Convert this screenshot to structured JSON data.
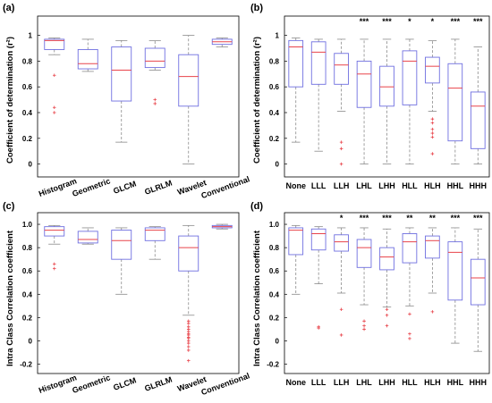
{
  "chart_data": [
    {
      "type": "box",
      "panel": "(a)",
      "ylabel": "Coefficient of determination (r²)",
      "ylim": [
        -0.1,
        1.15
      ],
      "yticks": [
        "0",
        "0.2",
        "0.4",
        "0.6",
        "0.8",
        "1"
      ],
      "ytick_values": [
        0,
        0.2,
        0.4,
        0.6,
        0.8,
        1
      ],
      "categories": [
        "Histogram",
        "Geometric",
        "GLCM",
        "GLRLM",
        "Wavelet",
        "Conventional"
      ],
      "significance": [
        "",
        "",
        "",
        "",
        "",
        ""
      ],
      "boxes": [
        {
          "min": 0.85,
          "q1": 0.89,
          "median": 0.96,
          "q3": 0.97,
          "max": 0.98,
          "outliers": [
            0.69,
            0.44,
            0.4
          ]
        },
        {
          "min": 0.72,
          "q1": 0.74,
          "median": 0.78,
          "q3": 0.89,
          "max": 0.97,
          "outliers": []
        },
        {
          "min": 0.17,
          "q1": 0.49,
          "median": 0.73,
          "q3": 0.91,
          "max": 0.96,
          "outliers": []
        },
        {
          "min": 0.73,
          "q1": 0.75,
          "median": 0.8,
          "q3": 0.9,
          "max": 0.96,
          "outliers": [
            0.5,
            0.47
          ]
        },
        {
          "min": 0.0,
          "q1": 0.45,
          "median": 0.68,
          "q3": 0.85,
          "max": 1.0,
          "outliers": []
        },
        {
          "min": 0.91,
          "q1": 0.93,
          "median": 0.95,
          "q3": 0.97,
          "max": 0.98,
          "outliers": []
        }
      ]
    },
    {
      "type": "box",
      "panel": "(b)",
      "ylabel": "Coefficient of determination (r²)",
      "ylim": [
        -0.1,
        1.15
      ],
      "yticks": [
        "0",
        "0.2",
        "0.4",
        "0.6",
        "0.8",
        "1"
      ],
      "ytick_values": [
        0,
        0.2,
        0.4,
        0.6,
        0.8,
        1
      ],
      "categories": [
        "None",
        "LLL",
        "LLH",
        "LHL",
        "LHH",
        "HLL",
        "HLH",
        "HHL",
        "HHH"
      ],
      "significance": [
        "",
        "",
        "",
        "***",
        "***",
        "*",
        "*",
        "***",
        "***"
      ],
      "boxes": [
        {
          "min": 0.17,
          "q1": 0.6,
          "median": 0.91,
          "q3": 0.96,
          "max": 0.98,
          "outliers": []
        },
        {
          "min": 0.1,
          "q1": 0.62,
          "median": 0.87,
          "q3": 0.95,
          "max": 0.97,
          "outliers": []
        },
        {
          "min": 0.41,
          "q1": 0.62,
          "median": 0.77,
          "q3": 0.86,
          "max": 0.97,
          "outliers": [
            0.17,
            0.12,
            0.0
          ]
        },
        {
          "min": 0.0,
          "q1": 0.44,
          "median": 0.7,
          "q3": 0.8,
          "max": 0.97,
          "outliers": []
        },
        {
          "min": 0.0,
          "q1": 0.45,
          "median": 0.6,
          "q3": 0.76,
          "max": 0.97,
          "outliers": []
        },
        {
          "min": 0.0,
          "q1": 0.46,
          "median": 0.8,
          "q3": 0.88,
          "max": 0.97,
          "outliers": []
        },
        {
          "min": 0.41,
          "q1": 0.63,
          "median": 0.76,
          "q3": 0.83,
          "max": 0.96,
          "outliers": [
            0.35,
            0.32,
            0.27,
            0.24,
            0.21,
            0.08
          ]
        },
        {
          "min": 0.0,
          "q1": 0.18,
          "median": 0.59,
          "q3": 0.78,
          "max": 0.97,
          "outliers": []
        },
        {
          "min": 0.0,
          "q1": 0.12,
          "median": 0.45,
          "q3": 0.56,
          "max": 0.91,
          "outliers": []
        }
      ]
    },
    {
      "type": "box",
      "panel": "(c)",
      "ylabel": "Intra Class Correlation coefficient",
      "ylim": [
        -0.28,
        1.1
      ],
      "yticks": [
        "-0.2",
        "0",
        "0.2",
        "0.4",
        "0.6",
        "0.8",
        "1.0"
      ],
      "ytick_values": [
        -0.2,
        0,
        0.2,
        0.4,
        0.6,
        0.8,
        1.0
      ],
      "categories": [
        "Histogram",
        "Geometric",
        "GLCM",
        "GLRLM",
        "Wavelet",
        "Conventional"
      ],
      "significance": [
        "",
        "",
        "",
        "",
        "",
        ""
      ],
      "boxes": [
        {
          "min": 0.83,
          "q1": 0.9,
          "median": 0.95,
          "q3": 0.98,
          "max": 0.99,
          "outliers": [
            0.66,
            0.62
          ]
        },
        {
          "min": 0.83,
          "q1": 0.84,
          "median": 0.87,
          "q3": 0.94,
          "max": 0.97,
          "outliers": []
        },
        {
          "min": 0.4,
          "q1": 0.7,
          "median": 0.86,
          "q3": 0.95,
          "max": 0.97,
          "outliers": []
        },
        {
          "min": 0.7,
          "q1": 0.86,
          "median": 0.95,
          "q3": 0.97,
          "max": 0.98,
          "outliers": []
        },
        {
          "min": 0.22,
          "q1": 0.6,
          "median": 0.8,
          "q3": 0.9,
          "max": 0.99,
          "outliers": [
            0.17,
            0.15,
            0.12,
            0.1,
            0.08,
            0.06,
            0.05,
            0.03,
            0.02,
            0.0,
            -0.02,
            -0.05,
            -0.08,
            -0.17
          ]
        },
        {
          "min": 0.96,
          "q1": 0.97,
          "median": 0.98,
          "q3": 0.99,
          "max": 1.0,
          "outliers": []
        }
      ]
    },
    {
      "type": "box",
      "panel": "(d)",
      "ylabel": "Intra Class Correlation coefficient",
      "ylim": [
        -0.28,
        1.1
      ],
      "yticks": [
        "-0.2",
        "0",
        "0.2",
        "0.4",
        "0.6",
        "0.8",
        "1.0"
      ],
      "ytick_values": [
        -0.2,
        0,
        0.2,
        0.4,
        0.6,
        0.8,
        1.0
      ],
      "categories": [
        "None",
        "LLL",
        "LLH",
        "LHL",
        "LHH",
        "HLL",
        "HLH",
        "HHL",
        "HHH"
      ],
      "significance": [
        "",
        "",
        "*",
        "***",
        "***",
        "**",
        "**",
        "***",
        "***"
      ],
      "boxes": [
        {
          "min": 0.4,
          "q1": 0.74,
          "median": 0.95,
          "q3": 0.97,
          "max": 0.99,
          "outliers": []
        },
        {
          "min": 0.49,
          "q1": 0.78,
          "median": 0.92,
          "q3": 0.96,
          "max": 0.98,
          "outliers": [
            0.12,
            0.11
          ]
        },
        {
          "min": 0.41,
          "q1": 0.77,
          "median": 0.85,
          "q3": 0.91,
          "max": 0.97,
          "outliers": [
            0.27,
            0.05
          ]
        },
        {
          "min": 0.31,
          "q1": 0.63,
          "median": 0.8,
          "q3": 0.87,
          "max": 0.97,
          "outliers": [
            0.17,
            0.13,
            0.1
          ]
        },
        {
          "min": 0.29,
          "q1": 0.61,
          "median": 0.72,
          "q3": 0.8,
          "max": 0.96,
          "outliers": [
            0.27,
            0.22,
            0.13
          ]
        },
        {
          "min": 0.3,
          "q1": 0.67,
          "median": 0.85,
          "q3": 0.92,
          "max": 0.97,
          "outliers": [
            0.23,
            0.06,
            0.02
          ]
        },
        {
          "min": 0.41,
          "q1": 0.71,
          "median": 0.86,
          "q3": 0.9,
          "max": 0.97,
          "outliers": [
            0.25
          ]
        },
        {
          "min": -0.02,
          "q1": 0.35,
          "median": 0.76,
          "q3": 0.85,
          "max": 0.97,
          "outliers": []
        },
        {
          "min": -0.09,
          "q1": 0.31,
          "median": 0.54,
          "q3": 0.7,
          "max": 0.96,
          "outliers": []
        }
      ]
    }
  ],
  "colors": {
    "box": "#6f6fe0",
    "median": "#e8434a",
    "whisker": "#8a8a8a",
    "outlier": "#e8434a",
    "axis": "#000000"
  }
}
